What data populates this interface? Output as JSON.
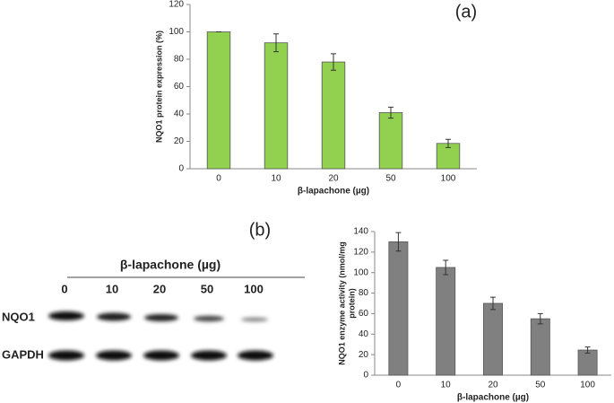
{
  "chart_data": [
    {
      "type": "bar",
      "panel_label": "(a)",
      "y_label": [
        "NQO1 protein expression (%)"
      ],
      "x_label": "β-lapachone (µg)",
      "categories": [
        "0",
        "10",
        "20",
        "50",
        "100"
      ],
      "values": [
        100,
        92,
        78,
        41,
        18.5
      ],
      "errors": [
        0,
        6.5,
        6,
        4,
        3
      ],
      "color": "#92d050",
      "ylim": [
        0,
        120
      ],
      "yticks": [
        0,
        20,
        40,
        60,
        80,
        100,
        120
      ],
      "grid": false
    },
    {
      "type": "bar",
      "y_label": [
        "NQO1 enzyme activity (nmol/mg",
        "protein)"
      ],
      "x_label": "β-lapachone (µg)",
      "categories": [
        "0",
        "10",
        "20",
        "50",
        "100"
      ],
      "values": [
        130,
        105,
        70,
        55,
        24.5
      ],
      "errors": [
        9,
        7,
        6,
        5,
        3
      ],
      "color": "#808080",
      "ylim": [
        0,
        140
      ],
      "yticks": [
        0,
        20,
        40,
        60,
        80,
        100,
        120,
        140
      ],
      "grid": false
    }
  ],
  "blot": {
    "panel_label": "(b)",
    "treatment": "β-lapachone (µg)",
    "lanes": [
      "0",
      "10",
      "20",
      "50",
      "100"
    ],
    "rows": [
      "NQO1",
      "GAPDH"
    ]
  }
}
